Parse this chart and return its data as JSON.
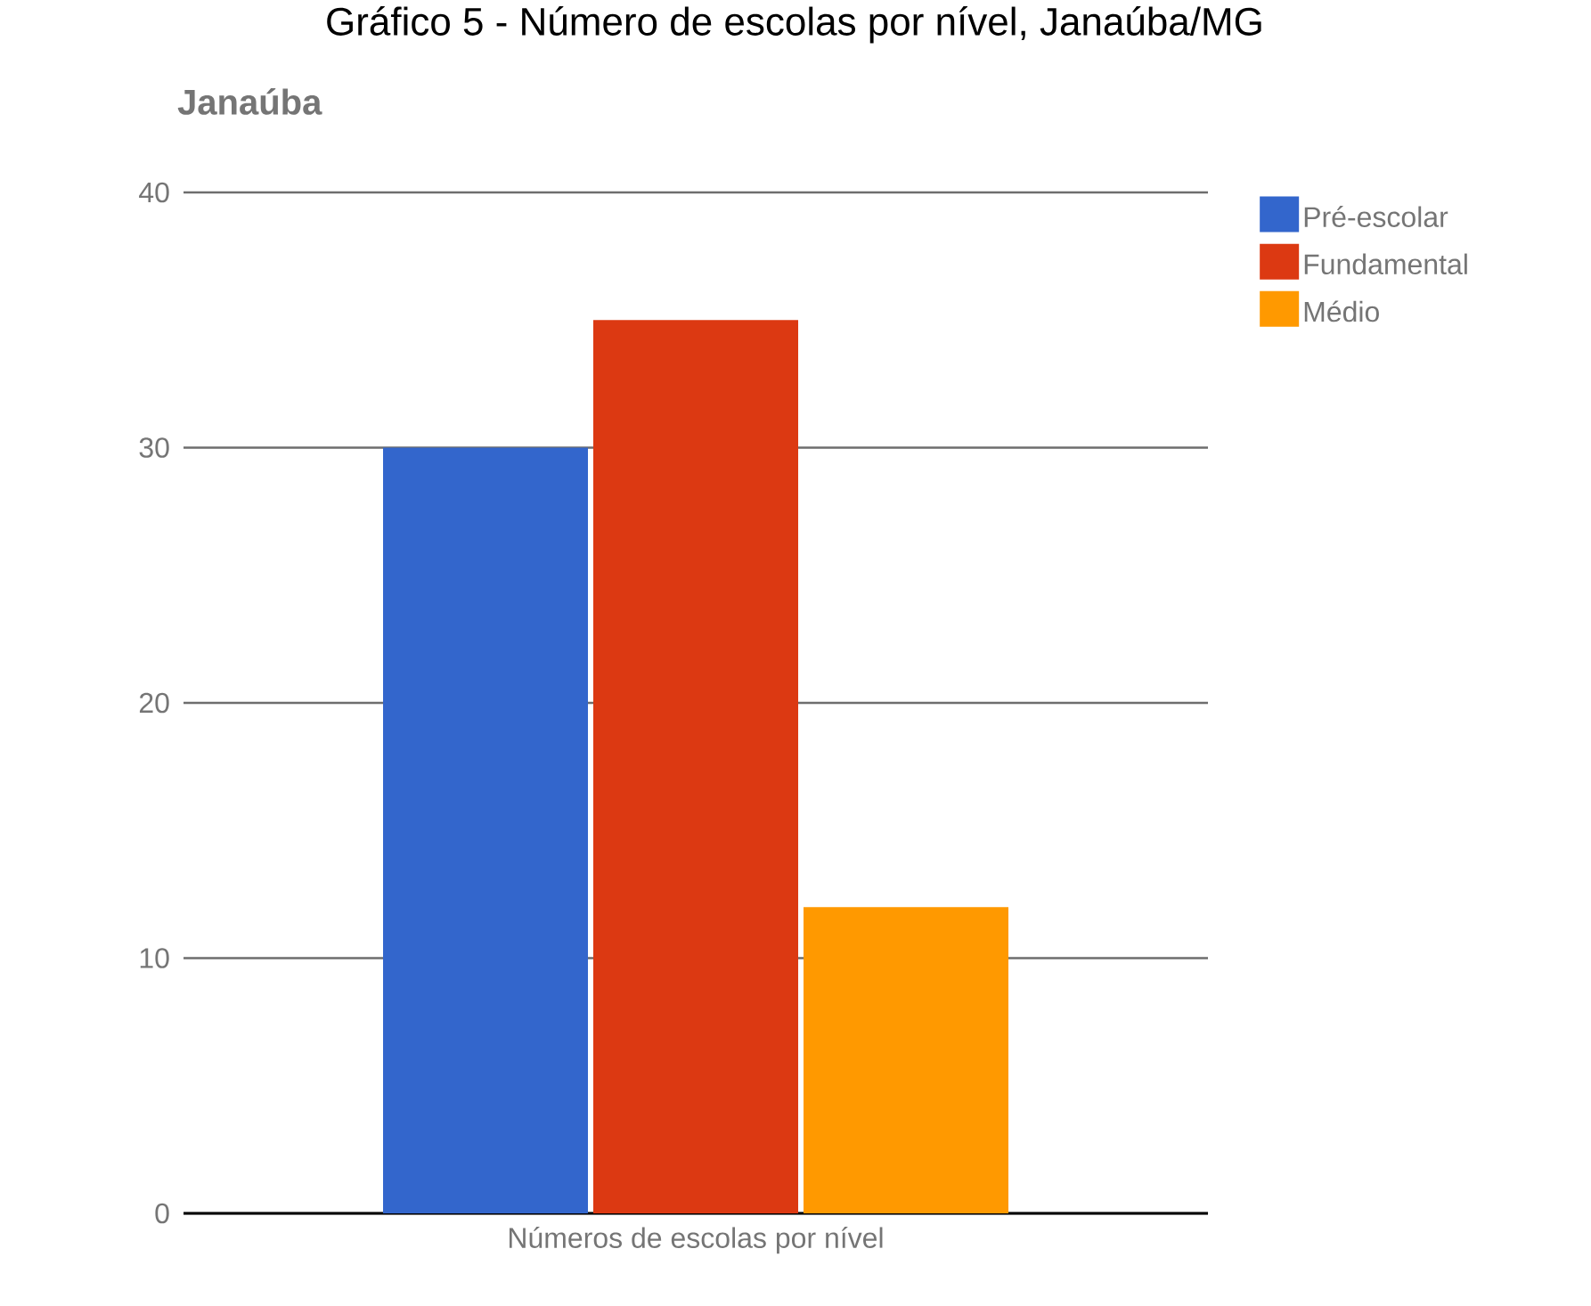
{
  "chart_data": {
    "type": "bar",
    "title": "Gráfico 5 - Número de escolas por nível, Janaúba/MG",
    "subtitle": "Janaúba",
    "categories": [
      "Números de escolas por nível"
    ],
    "series": [
      {
        "name": "Pré-escolar",
        "color": "#3366cc",
        "values": [
          30
        ]
      },
      {
        "name": "Fundamental",
        "color": "#dc3912",
        "values": [
          35
        ]
      },
      {
        "name": "Médio",
        "color": "#ff9900",
        "values": [
          12
        ]
      }
    ],
    "ylim": [
      0,
      40
    ],
    "yticks": [
      0,
      10,
      20,
      30,
      40
    ],
    "grid": "y",
    "legend": "right"
  }
}
